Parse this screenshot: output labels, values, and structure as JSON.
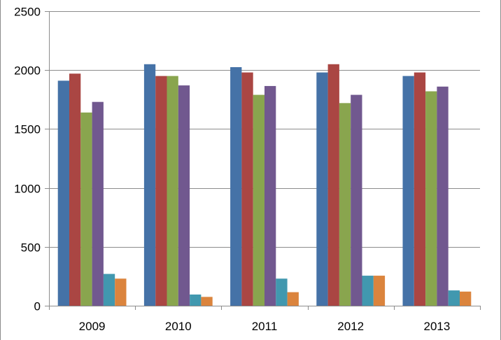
{
  "chart_data": {
    "type": "bar",
    "categories": [
      "2009",
      "2010",
      "2011",
      "2012",
      "2013"
    ],
    "ylim": [
      0,
      2500
    ],
    "yticks": [
      0,
      500,
      1000,
      1500,
      2000,
      2500
    ],
    "grid": true,
    "legend": "none",
    "series": [
      {
        "color": "#4572a7",
        "values": [
          1910,
          2050,
          2025,
          1980,
          1950
        ]
      },
      {
        "color": "#aa4643",
        "values": [
          1970,
          1950,
          1980,
          2050,
          1980
        ]
      },
      {
        "color": "#89a54e",
        "values": [
          1640,
          1950,
          1790,
          1720,
          1820
        ]
      },
      {
        "color": "#71588f",
        "values": [
          1730,
          1870,
          1865,
          1790,
          1860
        ]
      },
      {
        "color": "#4198af",
        "values": [
          270,
          95,
          230,
          255,
          130
        ]
      },
      {
        "color": "#db843d",
        "values": [
          230,
          75,
          115,
          255,
          120
        ]
      }
    ]
  }
}
